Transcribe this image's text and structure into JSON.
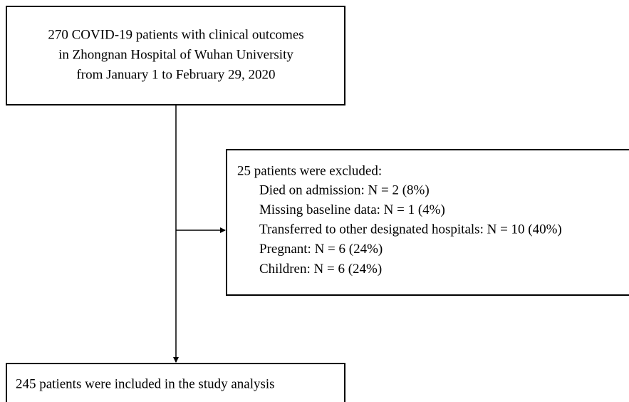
{
  "top_box": {
    "lines": [
      "270 COVID-19 patients with clinical outcomes",
      "in Zhongnan Hospital of Wuhan University",
      "from January 1 to February 29, 2020"
    ]
  },
  "exclusion_box": {
    "heading": "25 patients were excluded:",
    "items": [
      "Died on admission: N = 2 (8%)",
      "Missing baseline data: N = 1 (4%)",
      "Transferred to other designated hospitals: N = 10 (40%)",
      "Pregnant: N = 6 (24%)",
      "Children: N = 6 (24%)"
    ]
  },
  "bottom_box": {
    "text": "245 patients were included in the study analysis"
  }
}
